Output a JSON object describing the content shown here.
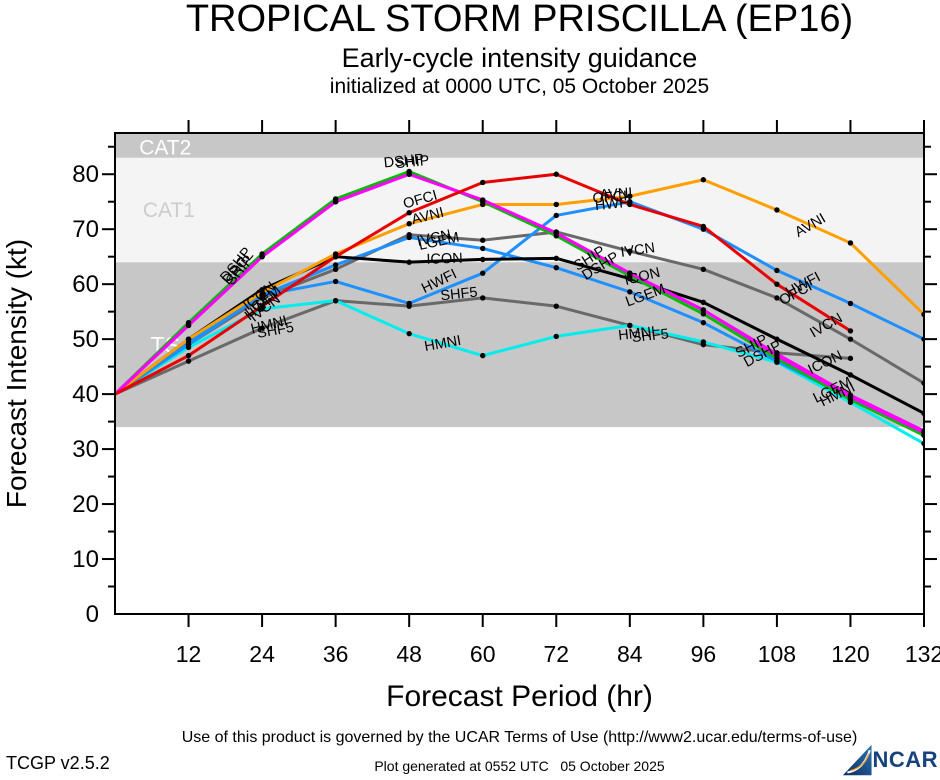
{
  "header": {
    "title": "TROPICAL STORM PRISCILLA (EP16)",
    "subtitle": "Early-cycle intensity guidance",
    "initialized": "initialized at 0000 UTC, 05 October 2025"
  },
  "footer": {
    "terms": "Use of this product is governed by the UCAR Terms of Use (http://www2.ucar.edu/terms-of-use)",
    "version": "TCGP v2.5.2",
    "generated": "Plot generated at 0552 UTC   05 October 2025",
    "logo_text": "NCAR"
  },
  "chart_data": {
    "type": "line",
    "title": "TROPICAL STORM PRISCILLA (EP16)",
    "xlabel": "Forecast Period (hr)",
    "ylabel": "Forecast Intensity (kt)",
    "xlim": [
      0,
      132
    ],
    "ylim": [
      0,
      87.5
    ],
    "x_ticks": [
      12,
      24,
      36,
      48,
      60,
      72,
      84,
      96,
      108,
      120,
      132
    ],
    "y_ticks": [
      0,
      10,
      20,
      30,
      40,
      50,
      60,
      70,
      80
    ],
    "grid": false,
    "legend": "labels drawn along lines",
    "bands": [
      {
        "label": "TS",
        "from": 34,
        "to": 64,
        "color": "#c7c7c7",
        "label_color": "#ffffff",
        "label_t": 8.2,
        "label_v": 48.9,
        "size": 23
      },
      {
        "label": "CAT1",
        "from": 64,
        "to": 83,
        "color": "#f4f4f4",
        "label_color": "#cccccc",
        "label_t": 8.8,
        "label_v": 73.6,
        "size": 21
      },
      {
        "label": "CAT2",
        "from": 83,
        "to": 87.5,
        "color": "#c7c7c7",
        "label_color": "#ffffff",
        "label_t": 8.2,
        "label_v": 84.9,
        "size": 21
      }
    ],
    "series": [
      {
        "name": "IVCN",
        "color": "#696969",
        "hours": [
          0,
          12,
          24,
          36,
          48,
          60,
          72,
          84,
          96,
          108,
          120,
          132
        ],
        "values": [
          40,
          49,
          57.5,
          62.7,
          69,
          68,
          69.5,
          66,
          62.7,
          57.5,
          50,
          42
        ]
      },
      {
        "name": "SHF5",
        "color": "#696969",
        "hours": [
          0,
          12,
          24,
          36,
          48,
          60,
          72,
          84,
          96,
          108,
          120
        ],
        "values": [
          40,
          46,
          52,
          57,
          56,
          57.5,
          56,
          52.5,
          49,
          47.5,
          46.5
        ]
      },
      {
        "name": "HMNI",
        "color": "#00eded",
        "hours": [
          0,
          12,
          24,
          36,
          48,
          60,
          72,
          84,
          96,
          108,
          120,
          132
        ],
        "values": [
          40,
          48.5,
          55.5,
          57,
          51,
          47,
          50.5,
          52.5,
          49.5,
          45.8,
          38.5,
          31
        ]
      },
      {
        "name": "LGEM",
        "color": "#1e90ff",
        "hours": [
          0,
          12,
          24,
          36,
          48,
          60,
          72,
          84,
          96,
          108,
          120,
          132
        ],
        "values": [
          40,
          49,
          58,
          63.5,
          68.5,
          66.5,
          63,
          58.6,
          53,
          46,
          39.3,
          32.5
        ]
      },
      {
        "name": "HWFI",
        "color": "#1e90ff",
        "hours": [
          0,
          12,
          24,
          36,
          48,
          60,
          72,
          84,
          96,
          108,
          120,
          132
        ],
        "values": [
          40,
          49.5,
          58,
          60.5,
          56.5,
          62,
          72.5,
          75,
          70,
          62.5,
          56.5,
          50
        ]
      },
      {
        "name": "ICON",
        "color": "#000000",
        "hours": [
          0,
          12,
          24,
          36,
          48,
          60,
          72,
          84,
          96,
          108,
          120,
          132
        ],
        "values": [
          40,
          50,
          59,
          65,
          64,
          64.5,
          64.7,
          61,
          56.7,
          50,
          43.5,
          36.5
        ]
      },
      {
        "name": "AVNI",
        "color": "#ffa000",
        "hours": [
          0,
          12,
          24,
          36,
          48,
          60,
          72,
          84,
          96,
          108,
          120,
          132
        ],
        "values": [
          40,
          50,
          58.5,
          65.5,
          71,
          74.5,
          74.5,
          76,
          79,
          73.5,
          67.5,
          54.5
        ]
      },
      {
        "name": "DRCL",
        "color": "#00bb00",
        "hours": [
          0,
          12,
          24,
          36,
          48,
          60,
          72,
          84,
          96,
          108,
          120,
          132
        ],
        "values": [
          40,
          53,
          65.5,
          75.5,
          80.5,
          75,
          68.8,
          61.5,
          54.6,
          46.5,
          39,
          32.5
        ]
      },
      {
        "name": "SHIP",
        "color": "#ff00ff",
        "hours": [
          0,
          12,
          24,
          36,
          48,
          60,
          72,
          84,
          96,
          108,
          120,
          132
        ],
        "values": [
          40,
          52.5,
          65,
          75,
          80,
          75.3,
          69.3,
          62,
          55.3,
          47.3,
          39.8,
          33.3
        ]
      },
      {
        "name": "DSHP",
        "color": "#ff00ff",
        "hours": [
          0,
          12,
          24,
          36,
          48,
          60,
          72,
          84,
          96,
          108,
          120,
          132
        ],
        "values": [
          40,
          52.5,
          65,
          75,
          80,
          75.3,
          69.3,
          62,
          55.3,
          47,
          39.5,
          33
        ]
      },
      {
        "name": "OFCI",
        "color": "#e80000",
        "hours": [
          0,
          12,
          24,
          36,
          48,
          60,
          72,
          84,
          96,
          108,
          120
        ],
        "values": [
          40,
          47,
          56,
          65,
          73,
          78.5,
          80,
          74.5,
          70.5,
          60,
          51.5
        ]
      }
    ],
    "labels": [
      {
        "text": "DSHP",
        "t": 20.3,
        "v": 63.0,
        "rot": -50
      },
      {
        "text": "SHIP",
        "t": 20.9,
        "v": 62.0,
        "rot": -50
      },
      {
        "text": "DRCL",
        "t": 20.6,
        "v": 62.5,
        "rot": -50
      },
      {
        "text": "ICON",
        "t": 24.0,
        "v": 57.2,
        "rot": -38
      },
      {
        "text": "LGEM",
        "t": 24.6,
        "v": 56.2,
        "rot": -38
      },
      {
        "text": "HWFI",
        "t": 24.3,
        "v": 55.4,
        "rot": -38
      },
      {
        "text": "IVCN",
        "t": 24.9,
        "v": 55.0,
        "rot": -38
      },
      {
        "text": "HMNI",
        "t": 25.3,
        "v": 51.8,
        "rot": -14
      },
      {
        "text": "SHF5",
        "t": 26.3,
        "v": 50.8,
        "rot": -10
      },
      {
        "text": "DSHP",
        "t": 47.2,
        "v": 81.6,
        "rot": -6
      },
      {
        "text": "SHIP",
        "t": 48.6,
        "v": 81.4,
        "rot": -6
      },
      {
        "text": "OFCI",
        "t": 50.0,
        "v": 74.6,
        "rot": -16
      },
      {
        "text": "AVNI",
        "t": 51.2,
        "v": 71.6,
        "rot": -14
      },
      {
        "text": "IVCN",
        "t": 52.2,
        "v": 67.6,
        "rot": -12
      },
      {
        "text": "LGEM",
        "t": 53.0,
        "v": 67.0,
        "rot": -12
      },
      {
        "text": "ICON",
        "t": 53.8,
        "v": 63.8,
        "rot": -2
      },
      {
        "text": "HWFI",
        "t": 53.2,
        "v": 59.8,
        "rot": -26
      },
      {
        "text": "SHF5",
        "t": 56.2,
        "v": 57.4,
        "rot": -6
      },
      {
        "text": "HMNI",
        "t": 53.6,
        "v": 48.4,
        "rot": -10
      },
      {
        "text": "AVNI",
        "t": 81.8,
        "v": 75.6,
        "rot": -4
      },
      {
        "text": "OFCI",
        "t": 80.8,
        "v": 75.0,
        "rot": -4
      },
      {
        "text": "HWFI",
        "t": 81.4,
        "v": 73.8,
        "rot": -6
      },
      {
        "text": "IVCN",
        "t": 85.4,
        "v": 65.4,
        "rot": -8
      },
      {
        "text": "SHIP",
        "t": 77.8,
        "v": 64.0,
        "rot": -32
      },
      {
        "text": "DSHP",
        "t": 79.6,
        "v": 62.6,
        "rot": -32
      },
      {
        "text": "ICON",
        "t": 86.2,
        "v": 60.6,
        "rot": -14
      },
      {
        "text": "LGEM",
        "t": 86.8,
        "v": 57.2,
        "rot": -20
      },
      {
        "text": "HMNI",
        "t": 85.2,
        "v": 50.2,
        "rot": -6
      },
      {
        "text": "SHF5",
        "t": 87.4,
        "v": 49.8,
        "rot": -6
      },
      {
        "text": "AVNI",
        "t": 113.8,
        "v": 70.0,
        "rot": -30
      },
      {
        "text": "HWFI",
        "t": 112.6,
        "v": 59.2,
        "rot": -28
      },
      {
        "text": "OFCI",
        "t": 111.4,
        "v": 57.6,
        "rot": -28
      },
      {
        "text": "IVCN",
        "t": 116.4,
        "v": 51.8,
        "rot": -30
      },
      {
        "text": "ICON",
        "t": 116.2,
        "v": 45.0,
        "rot": -26
      },
      {
        "text": "SHIP",
        "t": 104.2,
        "v": 48.0,
        "rot": -28
      },
      {
        "text": "DSHP",
        "t": 106.0,
        "v": 46.6,
        "rot": -28
      },
      {
        "text": "LGEM",
        "t": 117.4,
        "v": 40.0,
        "rot": -26
      },
      {
        "text": "HMNI",
        "t": 118.2,
        "v": 39.2,
        "rot": -26
      }
    ]
  }
}
